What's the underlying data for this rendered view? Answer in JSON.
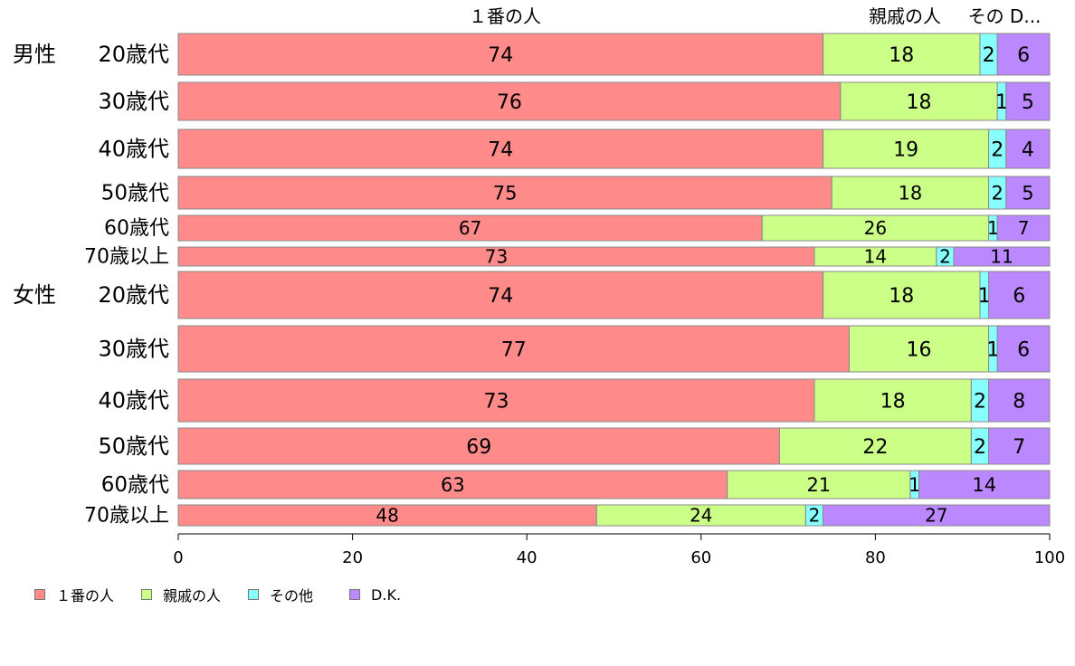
{
  "chart_data": {
    "type": "bar",
    "orientation": "horizontal",
    "stacked": true,
    "groups": [
      "男性",
      "女性"
    ],
    "categories": [
      "20歳代",
      "30歳代",
      "40歳代",
      "50歳代",
      "60歳代",
      "70歳以上",
      "20歳代",
      "30歳代",
      "40歳代",
      "50歳代",
      "60歳代",
      "70歳以上"
    ],
    "series": [
      {
        "name": "１番の人",
        "color": "#ff8a8a",
        "values": [
          74,
          76,
          74,
          75,
          67,
          73,
          74,
          77,
          73,
          69,
          63,
          48
        ]
      },
      {
        "name": "親戚の人",
        "color": "#ccff88",
        "values": [
          18,
          18,
          19,
          18,
          26,
          14,
          18,
          16,
          18,
          22,
          21,
          24
        ]
      },
      {
        "name": "その他",
        "color": "#88ffff",
        "values": [
          2,
          1,
          2,
          2,
          1,
          2,
          1,
          1,
          2,
          2,
          1,
          2
        ]
      },
      {
        "name": "D.K.",
        "color": "#bb88ff",
        "values": [
          6,
          5,
          4,
          5,
          7,
          11,
          6,
          6,
          8,
          7,
          14,
          27
        ]
      }
    ],
    "top_labels": [
      "１番の人",
      "親戚の人",
      "その D..."
    ],
    "xlim": [
      0,
      100
    ],
    "xticks": [
      0,
      20,
      40,
      60,
      80,
      100
    ],
    "legend": "bottom-left"
  }
}
